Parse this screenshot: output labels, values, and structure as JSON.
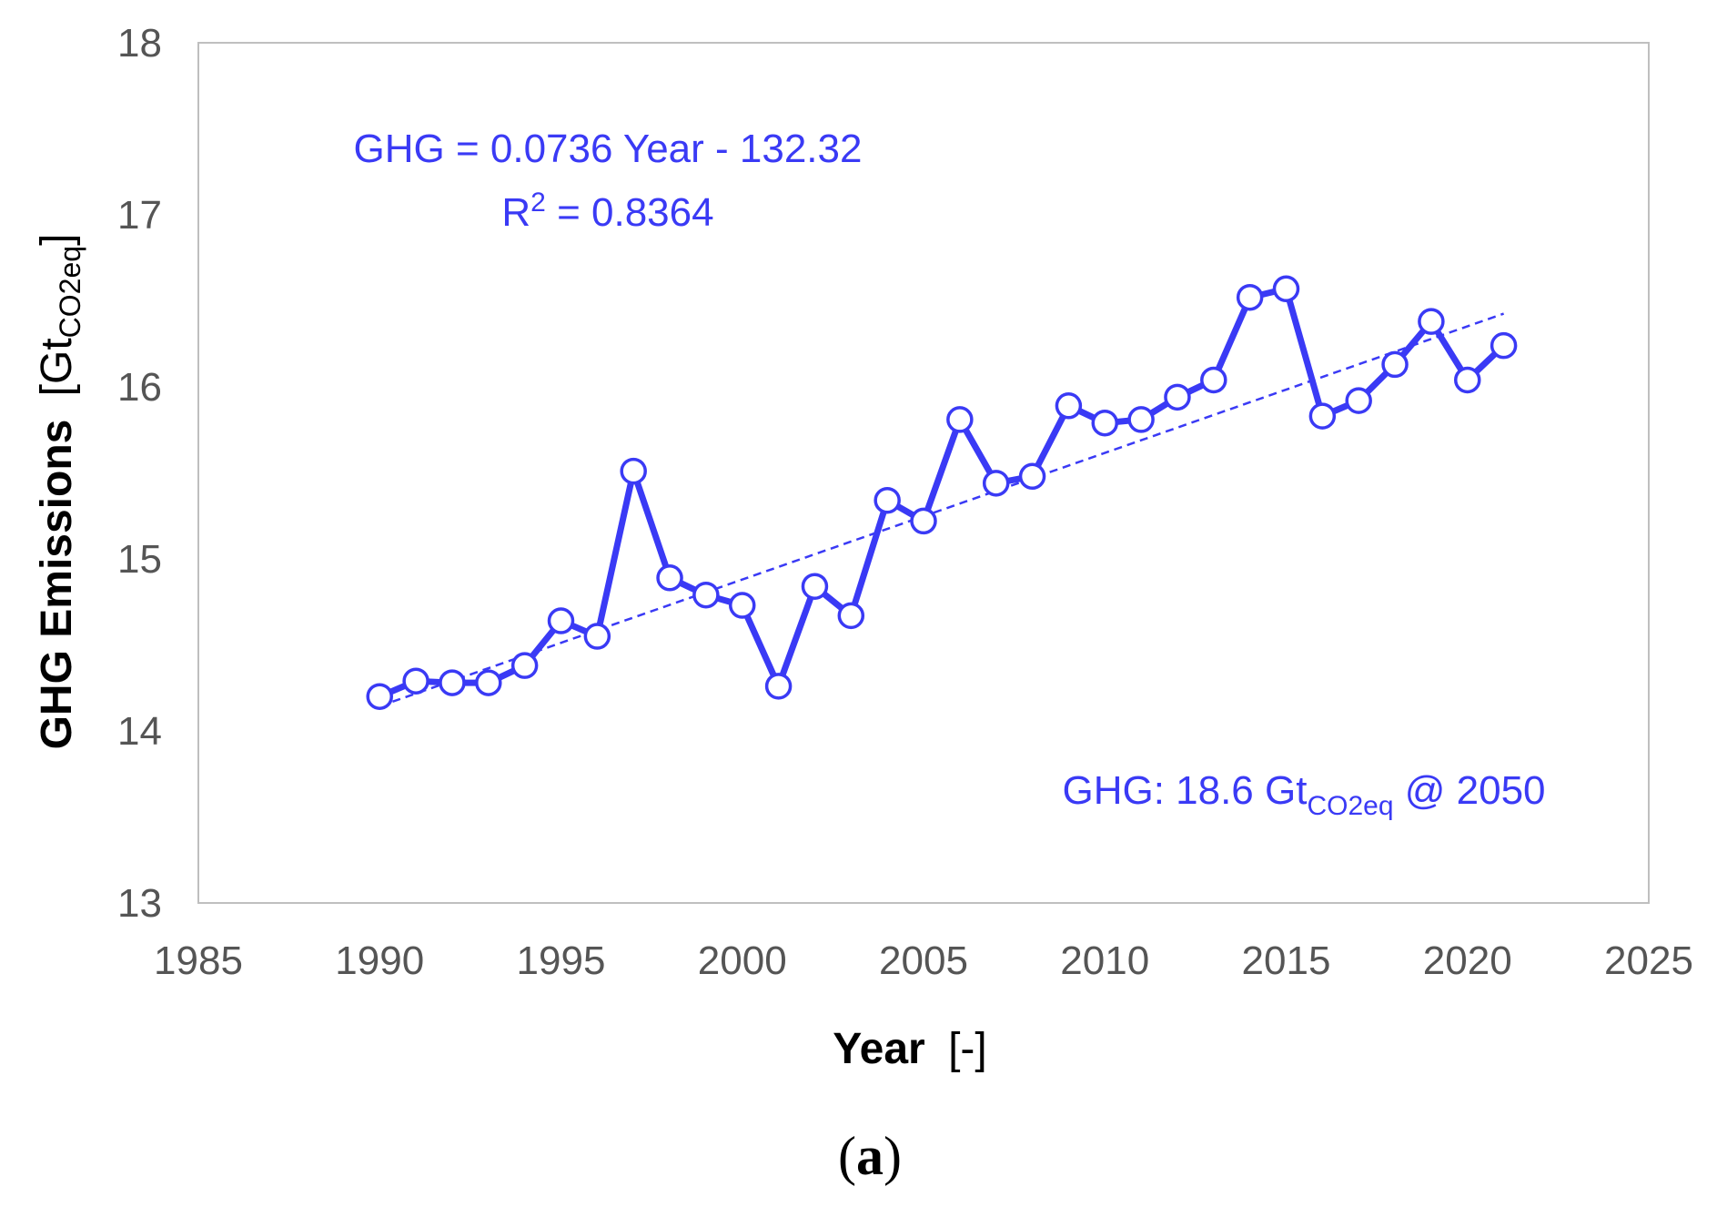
{
  "chart_data": {
    "type": "line",
    "title": "",
    "xlabel": "Year",
    "xlabel_suffix": "[-]",
    "ylabel": "GHG Emissions",
    "ylabel_unit": "[Gt",
    "ylabel_unit_sub": "CO2eq",
    "ylabel_unit_close": "]",
    "xlim": [
      1985,
      2025
    ],
    "ylim": [
      13,
      18
    ],
    "xticks": [
      1985,
      1990,
      1995,
      2000,
      2005,
      2010,
      2015,
      2020,
      2025
    ],
    "yticks": [
      13,
      14,
      15,
      16,
      17,
      18
    ],
    "grid": false,
    "series": [
      {
        "name": "GHG Emissions",
        "color": "#3a3af5",
        "marker": "open-circle",
        "x": [
          1990,
          1991,
          1992,
          1993,
          1994,
          1995,
          1996,
          1997,
          1998,
          1999,
          2000,
          2001,
          2002,
          2003,
          2004,
          2005,
          2006,
          2007,
          2008,
          2009,
          2010,
          2011,
          2012,
          2013,
          2014,
          2015,
          2016,
          2017,
          2018,
          2019,
          2020,
          2021
        ],
        "values": [
          14.2,
          14.29,
          14.28,
          14.28,
          14.38,
          14.64,
          14.55,
          15.51,
          14.89,
          14.79,
          14.73,
          14.26,
          14.84,
          14.67,
          15.34,
          15.22,
          15.81,
          15.44,
          15.48,
          15.89,
          15.79,
          15.81,
          15.94,
          16.04,
          16.52,
          16.57,
          15.83,
          15.92,
          16.13,
          16.38,
          16.04,
          16.24
        ]
      }
    ],
    "trendline": {
      "type": "linear",
      "color": "#3a3af5",
      "style": "dashed",
      "slope": 0.0736,
      "intercept": -132.32,
      "x_range": [
        1990,
        2021
      ]
    },
    "annotations": {
      "equation": "GHG = 0.0736 Year - 132.32",
      "r_squared_prefix": "R",
      "r_squared_sup": "2",
      "r_squared_value": " = 0.8364",
      "projection_prefix": "GHG: 18.6 Gt",
      "projection_sub": "CO2eq",
      "projection_suffix": " @ 2050"
    },
    "panel_label": {
      "open": "(",
      "letter": "a",
      "close": ")"
    }
  }
}
